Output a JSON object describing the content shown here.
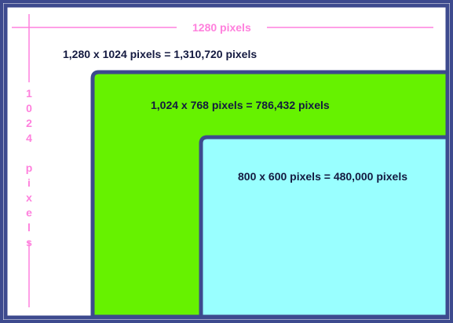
{
  "dimension_labels": {
    "width": "1280 pixels",
    "height": "1024 pixels"
  },
  "screens": [
    {
      "label": "1,280 x 1024 pixels = 1,310,720 pixels"
    },
    {
      "label": "1,024 x 768 pixels = 786,432 pixels"
    },
    {
      "label": "800 x 600 pixels = 480,000 pixels"
    }
  ]
}
